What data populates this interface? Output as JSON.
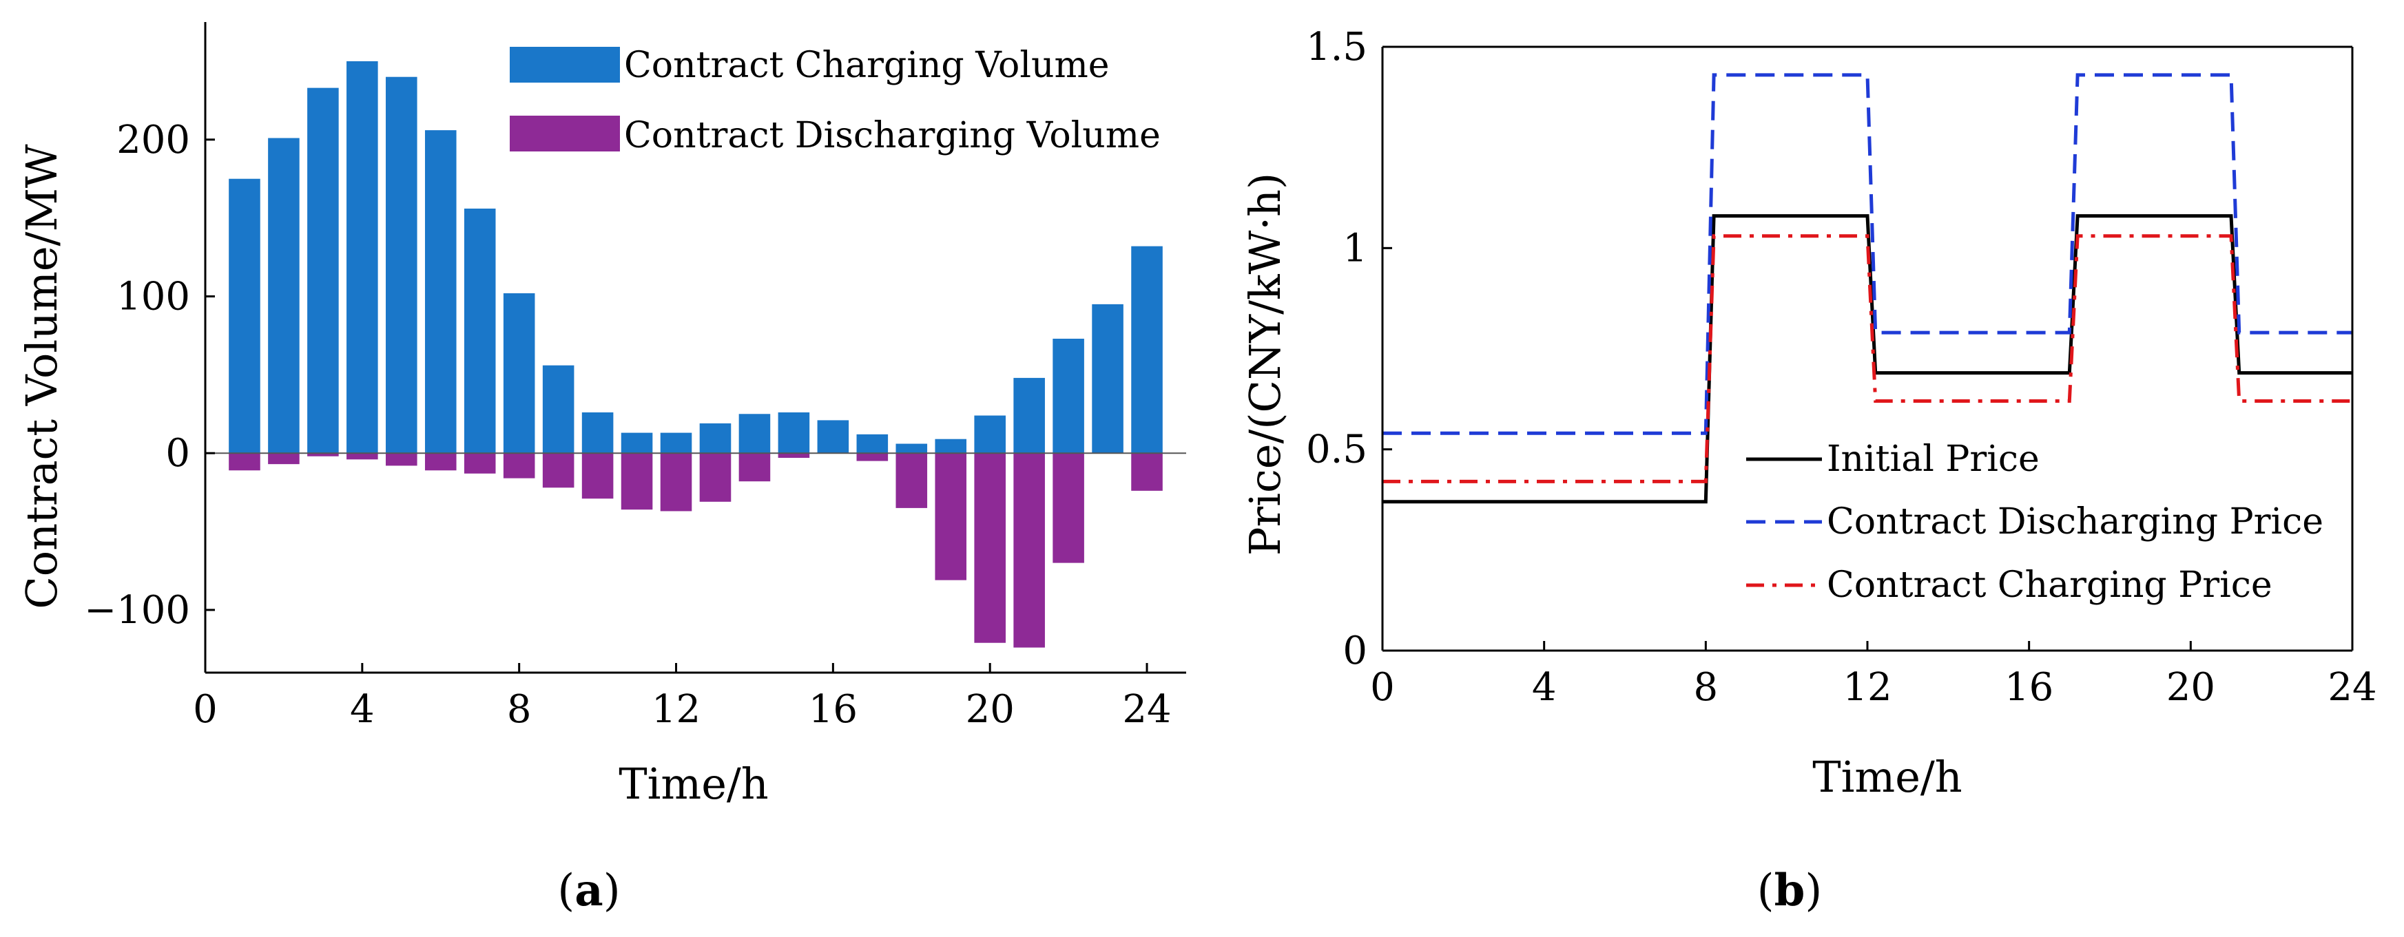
{
  "chart_data": [
    {
      "type": "bar",
      "panel_label_prefix": "(",
      "panel_label": "a",
      "panel_label_suffix": ")",
      "xlabel": "Time/h",
      "ylabel": "Contract Volume/MW",
      "xlim": [
        0,
        25
      ],
      "ylim": [
        -140,
        275
      ],
      "xticks": [
        0,
        4,
        8,
        12,
        16,
        20,
        24
      ],
      "xtick_labels": [
        "0",
        "4",
        "8",
        "12",
        "16",
        "20",
        "24"
      ],
      "yticks": [
        -100,
        0,
        100,
        200
      ],
      "ytick_labels": [
        "−100",
        "0",
        "100",
        "200"
      ],
      "legend_position": "top-right",
      "x": [
        1,
        2,
        3,
        4,
        5,
        6,
        7,
        8,
        9,
        10,
        11,
        12,
        13,
        14,
        15,
        16,
        17,
        18,
        19,
        20,
        21,
        22,
        23,
        24
      ],
      "series": [
        {
          "name": "Contract Charging Volume",
          "color": "#1a77c9",
          "values": [
            175,
            201,
            233,
            250,
            240,
            206,
            156,
            102,
            56,
            26,
            13,
            13,
            19,
            25,
            26,
            21,
            12,
            6,
            9,
            24,
            48,
            73,
            95,
            132
          ]
        },
        {
          "name": "Contract Discharging Volume",
          "color": "#8e2a96",
          "values": [
            -11,
            -7,
            -2,
            -4,
            -8,
            -11,
            -13,
            -16,
            -22,
            -29,
            -36,
            -37,
            -31,
            -18,
            -3,
            0,
            -5,
            -35,
            -81,
            -121,
            -124,
            -70,
            0,
            -24
          ]
        }
      ]
    },
    {
      "type": "line",
      "panel_label_prefix": "(",
      "panel_label": "b",
      "panel_label_suffix": ")",
      "xlabel": "Time/h",
      "ylabel": "Price/(CNY/kW·h)",
      "xlim": [
        0,
        24
      ],
      "ylim": [
        0,
        1.5
      ],
      "xticks": [
        0,
        4,
        8,
        12,
        16,
        20,
        24
      ],
      "xtick_labels": [
        "0",
        "4",
        "8",
        "12",
        "16",
        "20",
        "24"
      ],
      "yticks": [
        0,
        0.5,
        1,
        1.5
      ],
      "ytick_labels": [
        "0",
        "0.5",
        "1",
        "1.5"
      ],
      "legend_position": "center-right",
      "series": [
        {
          "name": "Initial Price",
          "color": "#000000",
          "dash": "solid",
          "x": [
            0,
            8,
            8.2,
            12,
            12.2,
            17,
            17.2,
            21,
            21.2,
            24
          ],
          "y": [
            0.37,
            0.37,
            1.08,
            1.08,
            0.69,
            0.69,
            1.08,
            1.08,
            0.69,
            0.69
          ]
        },
        {
          "name": "Contract Discharging Price",
          "color": "#1f3bd6",
          "dash": "dashed",
          "x": [
            0,
            8,
            8.2,
            12,
            12.2,
            17,
            17.2,
            21,
            21.2,
            24
          ],
          "y": [
            0.54,
            0.54,
            1.43,
            1.43,
            0.79,
            0.79,
            1.43,
            1.43,
            0.79,
            0.79
          ]
        },
        {
          "name": "Contract Charging Price",
          "color": "#e0161b",
          "dash": "dashdot",
          "x": [
            0,
            8,
            8.2,
            12,
            12.2,
            17,
            17.2,
            21,
            21.2,
            24
          ],
          "y": [
            0.42,
            0.42,
            1.03,
            1.03,
            0.62,
            0.62,
            1.03,
            1.03,
            0.62,
            0.62
          ]
        }
      ]
    }
  ]
}
